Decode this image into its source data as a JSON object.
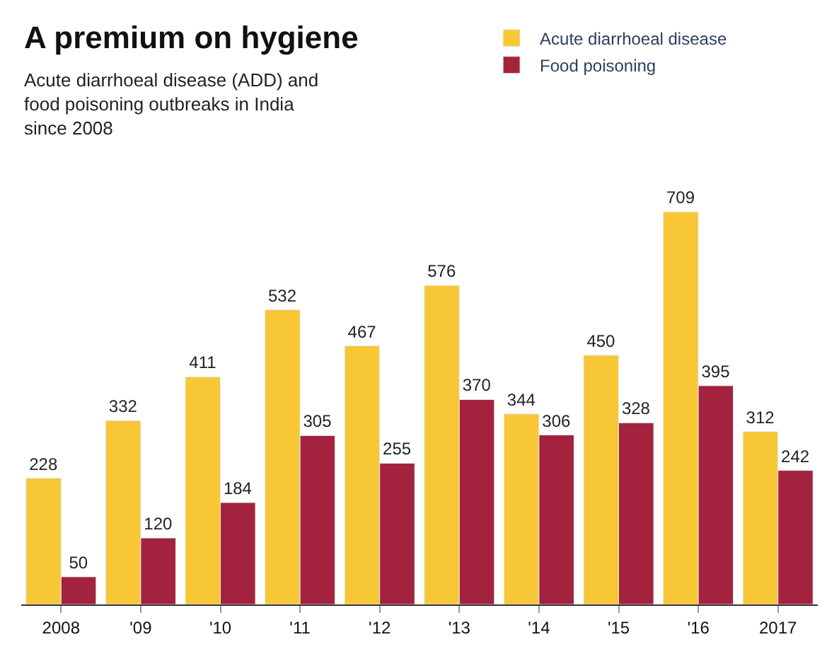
{
  "chart_data": {
    "type": "bar",
    "title": "A premium on hygiene",
    "subtitle": "Acute diarrhoeal disease (ADD) and\nfood poisoning outbreaks in India\nsince 2008",
    "categories": [
      "2008",
      "'09",
      "'10",
      "'11",
      "'12",
      "'13",
      "'14",
      "'15",
      "'16",
      "2017"
    ],
    "series": [
      {
        "name": "Acute diarrhoeal disease",
        "color": "#f7c735",
        "values": [
          228,
          332,
          411,
          532,
          467,
          576,
          344,
          450,
          709,
          312
        ]
      },
      {
        "name": "Food poisoning",
        "color": "#a3223d",
        "values": [
          50,
          120,
          184,
          305,
          255,
          370,
          306,
          328,
          395,
          242
        ]
      }
    ],
    "data_labels": true,
    "legend": "top right"
  }
}
